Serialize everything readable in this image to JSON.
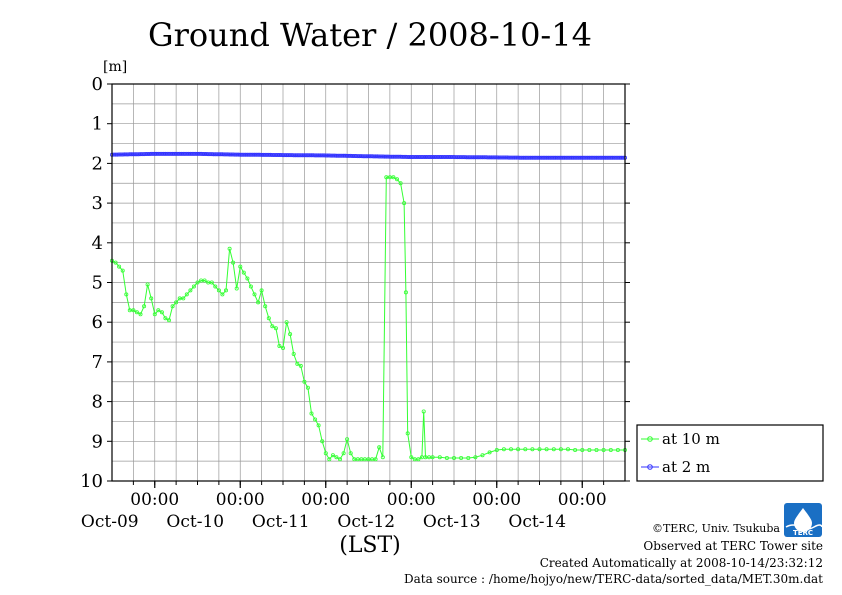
{
  "chart_data": {
    "type": "line",
    "title": "Ground Water / 2008-10-14",
    "ylabel": "[m]",
    "xlabel": "(LST)",
    "ylim": [
      0,
      10
    ],
    "y_inverted": true,
    "y_ticks": [
      "0",
      "1",
      "2",
      "3",
      "4",
      "5",
      "6",
      "7",
      "8",
      "9",
      "10"
    ],
    "x_range": [
      0,
      144
    ],
    "x_unit": "hours from 2008-10-08 12:00 LST",
    "x_ticks": [
      {
        "x": 12,
        "time": "00:00",
        "date": "Oct-09"
      },
      {
        "x": 36,
        "time": "00:00",
        "date": "Oct-10"
      },
      {
        "x": 60,
        "time": "00:00",
        "date": "Oct-11"
      },
      {
        "x": 84,
        "time": "00:00",
        "date": "Oct-12"
      },
      {
        "x": 108,
        "time": "00:00",
        "date": "Oct-13"
      },
      {
        "x": 132,
        "time": "00:00",
        "date": "Oct-14"
      }
    ],
    "grid": true,
    "legend_position": "right",
    "series": [
      {
        "name": "at 10 m",
        "color": "#33ff33",
        "points": [
          [
            0,
            4.45
          ],
          [
            1,
            4.5
          ],
          [
            2,
            4.6
          ],
          [
            3,
            4.7
          ],
          [
            4,
            5.3
          ],
          [
            5,
            5.7
          ],
          [
            6,
            5.7
          ],
          [
            7,
            5.75
          ],
          [
            8,
            5.8
          ],
          [
            9,
            5.6
          ],
          [
            10,
            5.05
          ],
          [
            11,
            5.4
          ],
          [
            12,
            5.8
          ],
          [
            13,
            5.7
          ],
          [
            14,
            5.75
          ],
          [
            15,
            5.9
          ],
          [
            16,
            5.95
          ],
          [
            17,
            5.6
          ],
          [
            18,
            5.5
          ],
          [
            19,
            5.4
          ],
          [
            20,
            5.4
          ],
          [
            21,
            5.3
          ],
          [
            22,
            5.2
          ],
          [
            23,
            5.1
          ],
          [
            24,
            5.0
          ],
          [
            25,
            4.95
          ],
          [
            26,
            4.95
          ],
          [
            27,
            5.0
          ],
          [
            28,
            5.0
          ],
          [
            29,
            5.1
          ],
          [
            30,
            5.2
          ],
          [
            31,
            5.3
          ],
          [
            32,
            5.2
          ],
          [
            33,
            4.15
          ],
          [
            34,
            4.5
          ],
          [
            35,
            5.15
          ],
          [
            36,
            4.6
          ],
          [
            37,
            4.75
          ],
          [
            38,
            4.9
          ],
          [
            39,
            5.1
          ],
          [
            40,
            5.3
          ],
          [
            41,
            5.5
          ],
          [
            42,
            5.2
          ],
          [
            43,
            5.6
          ],
          [
            44,
            5.9
          ],
          [
            45,
            6.1
          ],
          [
            46,
            6.15
          ],
          [
            47,
            6.6
          ],
          [
            48,
            6.65
          ],
          [
            49,
            6.0
          ],
          [
            50,
            6.3
          ],
          [
            51,
            6.8
          ],
          [
            52,
            7.05
          ],
          [
            53,
            7.1
          ],
          [
            54,
            7.5
          ],
          [
            55,
            7.65
          ],
          [
            56,
            8.3
          ],
          [
            57,
            8.45
          ],
          [
            58,
            8.6
          ],
          [
            59,
            9.0
          ],
          [
            60,
            9.3
          ],
          [
            61,
            9.45
          ],
          [
            62,
            9.35
          ],
          [
            63,
            9.4
          ],
          [
            64,
            9.45
          ],
          [
            65,
            9.3
          ],
          [
            66,
            8.95
          ],
          [
            67,
            9.3
          ],
          [
            68,
            9.45
          ],
          [
            69,
            9.45
          ],
          [
            70,
            9.45
          ],
          [
            71,
            9.45
          ],
          [
            72,
            9.45
          ],
          [
            73,
            9.45
          ],
          [
            74,
            9.45
          ],
          [
            75,
            9.15
          ],
          [
            76,
            9.4
          ],
          [
            77,
            2.35
          ],
          [
            78,
            2.35
          ],
          [
            79,
            2.35
          ],
          [
            80,
            2.4
          ],
          [
            81,
            2.5
          ],
          [
            82,
            3.0
          ],
          [
            82.5,
            5.25
          ],
          [
            83,
            8.8
          ],
          [
            84,
            9.4
          ],
          [
            85,
            9.45
          ],
          [
            86,
            9.45
          ],
          [
            87,
            9.4
          ],
          [
            87.5,
            8.25
          ],
          [
            88,
            9.4
          ],
          [
            89,
            9.4
          ],
          [
            90,
            9.4
          ],
          [
            92,
            9.4
          ],
          [
            94,
            9.42
          ],
          [
            96,
            9.42
          ],
          [
            98,
            9.42
          ],
          [
            100,
            9.42
          ],
          [
            102,
            9.4
          ],
          [
            104,
            9.35
          ],
          [
            106,
            9.28
          ],
          [
            108,
            9.22
          ],
          [
            110,
            9.2
          ],
          [
            112,
            9.2
          ],
          [
            114,
            9.2
          ],
          [
            116,
            9.2
          ],
          [
            118,
            9.2
          ],
          [
            120,
            9.2
          ],
          [
            122,
            9.2
          ],
          [
            124,
            9.2
          ],
          [
            126,
            9.2
          ],
          [
            128,
            9.2
          ],
          [
            130,
            9.22
          ],
          [
            132,
            9.22
          ],
          [
            134,
            9.22
          ],
          [
            136,
            9.22
          ],
          [
            138,
            9.22
          ],
          [
            140,
            9.22
          ],
          [
            142,
            9.22
          ],
          [
            144,
            9.22
          ]
        ]
      },
      {
        "name": "at 2 m",
        "color": "#3333ff",
        "points": [
          [
            0,
            1.78
          ],
          [
            12,
            1.76
          ],
          [
            24,
            1.76
          ],
          [
            36,
            1.78
          ],
          [
            48,
            1.79
          ],
          [
            60,
            1.8
          ],
          [
            72,
            1.82
          ],
          [
            84,
            1.84
          ],
          [
            96,
            1.84
          ],
          [
            108,
            1.85
          ],
          [
            120,
            1.86
          ],
          [
            132,
            1.86
          ],
          [
            144,
            1.86
          ]
        ]
      }
    ]
  },
  "credits": {
    "copyright": "©TERC, Univ. Tsukuba",
    "site": "Observed at TERC Tower site",
    "created": "Created Automatically at 2008-10-14/23:32:12",
    "source": "Data source : /home/hojyo/new/TERC-data/sorted_data/MET.30m.dat",
    "logo_text": "TERC"
  }
}
